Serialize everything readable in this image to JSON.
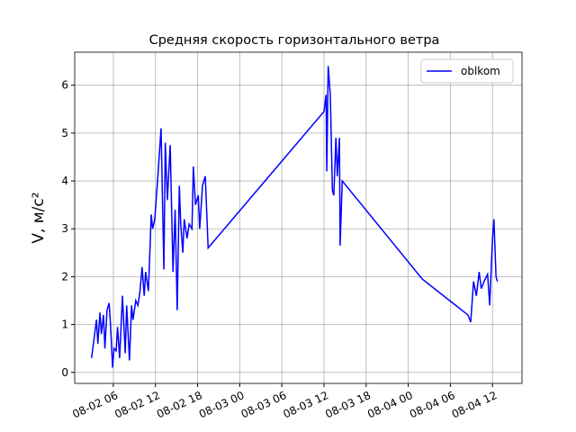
{
  "chart_data": {
    "type": "line",
    "title": "Средняя скорость горизонтального ветра",
    "y_label": "V, м/с²",
    "x": [
      2.9,
      3.3,
      3.6,
      3.8,
      4.1,
      4.3,
      4.6,
      4.8,
      5.1,
      5.4,
      5.6,
      5.9,
      6.1,
      6.4,
      6.6,
      6.9,
      7.3,
      7.7,
      7.9,
      8.3,
      8.6,
      8.8,
      9.2,
      9.5,
      9.8,
      10.1,
      10.4,
      10.6,
      11.0,
      11.4,
      11.6,
      11.9,
      12.3,
      12.8,
      13.2,
      13.4,
      13.7,
      14.1,
      14.5,
      14.8,
      15.1,
      15.4,
      15.6,
      15.9,
      16.1,
      16.5,
      16.8,
      17.2,
      17.4,
      17.7,
      18.1,
      18.3,
      18.7,
      19.1,
      19.5,
      36.0,
      36.3,
      36.4,
      36.6,
      36.9,
      37.2,
      37.4,
      37.7,
      37.9,
      38.2,
      38.3,
      38.6,
      50.0,
      56.5,
      56.9,
      57.3,
      57.7,
      58.1,
      58.4,
      58.8,
      59.3,
      59.6,
      60.0,
      60.2,
      60.5,
      60.7
    ],
    "series": [
      {
        "name": "oblkom",
        "color": "#0000ff",
        "values": [
          0.3,
          0.75,
          1.1,
          0.6,
          1.25,
          0.8,
          1.2,
          0.5,
          1.3,
          1.45,
          1.0,
          0.1,
          0.5,
          0.45,
          0.95,
          0.3,
          1.6,
          0.4,
          1.4,
          0.25,
          1.4,
          1.1,
          1.5,
          1.4,
          1.7,
          2.2,
          1.6,
          2.1,
          1.7,
          3.3,
          3.0,
          3.2,
          4.0,
          5.1,
          2.15,
          4.8,
          3.6,
          4.75,
          2.1,
          3.4,
          1.3,
          3.9,
          3.1,
          2.5,
          3.2,
          2.8,
          3.1,
          3.0,
          4.3,
          3.5,
          3.7,
          3.0,
          3.9,
          4.1,
          2.6,
          5.45,
          5.8,
          4.2,
          6.4,
          5.8,
          3.8,
          3.7,
          4.9,
          4.1,
          4.9,
          2.65,
          4.0,
          1.95,
          1.2,
          1.05,
          1.9,
          1.6,
          2.1,
          1.75,
          1.9,
          2.05,
          1.4,
          2.8,
          3.2,
          2.0,
          1.9
        ]
      }
    ],
    "xlim": [
      0.5,
      64.2
    ],
    "ylim": [
      -0.23,
      6.69
    ],
    "xticks": [
      {
        "value": 6,
        "label": "08-02 06"
      },
      {
        "value": 12,
        "label": "08-02 12"
      },
      {
        "value": 18,
        "label": "08-02 18"
      },
      {
        "value": 24,
        "label": "08-03 00"
      },
      {
        "value": 30,
        "label": "08-03 06"
      },
      {
        "value": 36,
        "label": "08-03 12"
      },
      {
        "value": 42,
        "label": "08-03 18"
      },
      {
        "value": 48,
        "label": "08-04 00"
      },
      {
        "value": 54,
        "label": "08-04 06"
      },
      {
        "value": 60,
        "label": "08-04 12"
      }
    ],
    "yticks": [
      0,
      1,
      2,
      3,
      4,
      5,
      6
    ],
    "grid": true,
    "legend": "upper right"
  }
}
